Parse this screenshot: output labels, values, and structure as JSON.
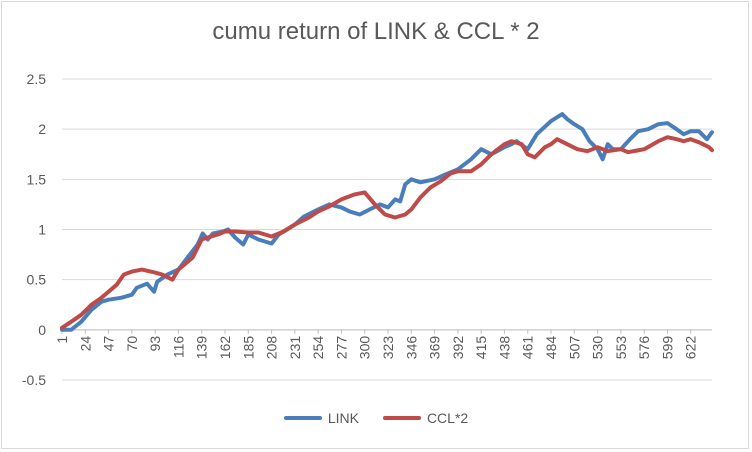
{
  "chart_data": {
    "type": "line",
    "title": "cumu return of LINK & CCL * 2",
    "xlabel": "",
    "ylabel": "",
    "ylim": [
      -0.5,
      2.5
    ],
    "yticks": [
      "2.5",
      "2",
      "1.5",
      "1",
      "0.5",
      "0",
      "-0.5"
    ],
    "x_ticks": [
      "1",
      "24",
      "47",
      "70",
      "93",
      "116",
      "139",
      "162",
      "185",
      "208",
      "231",
      "254",
      "277",
      "300",
      "323",
      "346",
      "369",
      "392",
      "415",
      "438",
      "461",
      "484",
      "507",
      "530",
      "553",
      "576",
      "599",
      "622"
    ],
    "x_range": [
      1,
      643
    ],
    "grid": "horizontal",
    "legend_position": "bottom",
    "series": [
      {
        "name": "LINK",
        "color": "#4a7ebb",
        "points": [
          [
            1,
            0.0
          ],
          [
            10,
            0.0
          ],
          [
            20,
            0.08
          ],
          [
            30,
            0.2
          ],
          [
            40,
            0.28
          ],
          [
            47,
            0.3
          ],
          [
            60,
            0.32
          ],
          [
            70,
            0.35
          ],
          [
            75,
            0.42
          ],
          [
            85,
            0.46
          ],
          [
            92,
            0.38
          ],
          [
            95,
            0.48
          ],
          [
            105,
            0.55
          ],
          [
            116,
            0.6
          ],
          [
            125,
            0.72
          ],
          [
            135,
            0.85
          ],
          [
            140,
            0.96
          ],
          [
            145,
            0.9
          ],
          [
            150,
            0.96
          ],
          [
            160,
            0.98
          ],
          [
            165,
            1.0
          ],
          [
            172,
            0.92
          ],
          [
            180,
            0.85
          ],
          [
            185,
            0.95
          ],
          [
            195,
            0.9
          ],
          [
            208,
            0.86
          ],
          [
            215,
            0.95
          ],
          [
            231,
            1.05
          ],
          [
            240,
            1.13
          ],
          [
            254,
            1.2
          ],
          [
            265,
            1.25
          ],
          [
            277,
            1.22
          ],
          [
            285,
            1.18
          ],
          [
            295,
            1.15
          ],
          [
            305,
            1.2
          ],
          [
            315,
            1.25
          ],
          [
            323,
            1.22
          ],
          [
            330,
            1.3
          ],
          [
            335,
            1.28
          ],
          [
            340,
            1.45
          ],
          [
            346,
            1.5
          ],
          [
            355,
            1.47
          ],
          [
            369,
            1.5
          ],
          [
            380,
            1.55
          ],
          [
            392,
            1.6
          ],
          [
            405,
            1.7
          ],
          [
            415,
            1.8
          ],
          [
            425,
            1.75
          ],
          [
            438,
            1.82
          ],
          [
            445,
            1.85
          ],
          [
            450,
            1.88
          ],
          [
            461,
            1.8
          ],
          [
            470,
            1.95
          ],
          [
            484,
            2.08
          ],
          [
            495,
            2.15
          ],
          [
            500,
            2.1
          ],
          [
            507,
            2.05
          ],
          [
            515,
            2.0
          ],
          [
            522,
            1.88
          ],
          [
            530,
            1.8
          ],
          [
            535,
            1.7
          ],
          [
            540,
            1.85
          ],
          [
            545,
            1.8
          ],
          [
            553,
            1.8
          ],
          [
            562,
            1.9
          ],
          [
            570,
            1.98
          ],
          [
            580,
            2.0
          ],
          [
            590,
            2.05
          ],
          [
            599,
            2.06
          ],
          [
            608,
            2.0
          ],
          [
            615,
            1.95
          ],
          [
            622,
            1.98
          ],
          [
            630,
            1.98
          ],
          [
            638,
            1.9
          ],
          [
            643,
            1.97
          ]
        ]
      },
      {
        "name": "CCL*2",
        "color": "#be4b48",
        "points": [
          [
            1,
            0.02
          ],
          [
            10,
            0.08
          ],
          [
            20,
            0.15
          ],
          [
            30,
            0.25
          ],
          [
            40,
            0.32
          ],
          [
            47,
            0.38
          ],
          [
            55,
            0.45
          ],
          [
            62,
            0.55
          ],
          [
            70,
            0.58
          ],
          [
            80,
            0.6
          ],
          [
            93,
            0.57
          ],
          [
            100,
            0.55
          ],
          [
            110,
            0.5
          ],
          [
            116,
            0.6
          ],
          [
            130,
            0.72
          ],
          [
            139,
            0.9
          ],
          [
            145,
            0.92
          ],
          [
            155,
            0.95
          ],
          [
            162,
            0.98
          ],
          [
            172,
            0.98
          ],
          [
            185,
            0.97
          ],
          [
            195,
            0.97
          ],
          [
            208,
            0.93
          ],
          [
            220,
            0.98
          ],
          [
            231,
            1.05
          ],
          [
            245,
            1.12
          ],
          [
            254,
            1.18
          ],
          [
            265,
            1.23
          ],
          [
            277,
            1.3
          ],
          [
            290,
            1.35
          ],
          [
            300,
            1.37
          ],
          [
            310,
            1.25
          ],
          [
            320,
            1.15
          ],
          [
            330,
            1.12
          ],
          [
            340,
            1.15
          ],
          [
            346,
            1.2
          ],
          [
            355,
            1.32
          ],
          [
            365,
            1.42
          ],
          [
            375,
            1.48
          ],
          [
            385,
            1.56
          ],
          [
            392,
            1.58
          ],
          [
            405,
            1.58
          ],
          [
            415,
            1.65
          ],
          [
            425,
            1.75
          ],
          [
            438,
            1.85
          ],
          [
            445,
            1.88
          ],
          [
            455,
            1.85
          ],
          [
            461,
            1.75
          ],
          [
            468,
            1.72
          ],
          [
            478,
            1.82
          ],
          [
            484,
            1.85
          ],
          [
            490,
            1.9
          ],
          [
            500,
            1.85
          ],
          [
            510,
            1.8
          ],
          [
            520,
            1.78
          ],
          [
            530,
            1.82
          ],
          [
            540,
            1.78
          ],
          [
            553,
            1.8
          ],
          [
            560,
            1.77
          ],
          [
            576,
            1.8
          ],
          [
            590,
            1.88
          ],
          [
            599,
            1.92
          ],
          [
            608,
            1.9
          ],
          [
            615,
            1.88
          ],
          [
            622,
            1.9
          ],
          [
            630,
            1.87
          ],
          [
            640,
            1.82
          ],
          [
            643,
            1.79
          ]
        ]
      }
    ]
  }
}
